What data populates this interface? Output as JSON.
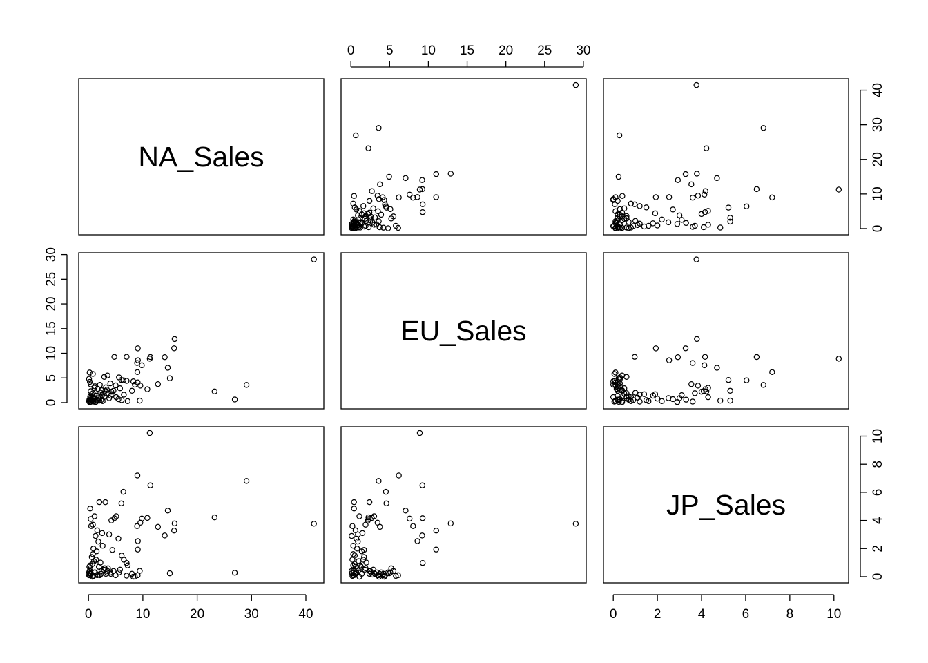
{
  "chart_data": {
    "type": "scatter",
    "title": "",
    "variables": [
      {
        "name": "NA_Sales",
        "range": [
          0,
          41.5
        ]
      },
      {
        "name": "EU_Sales",
        "range": [
          0,
          29.1
        ]
      },
      {
        "name": "JP_Sales",
        "range": [
          0,
          10.22
        ]
      }
    ],
    "axis_ticks": {
      "NA_Sales": [
        "0",
        "10",
        "20",
        "30",
        "40"
      ],
      "EU_Sales": [
        "0",
        "5",
        "10",
        "15",
        "20",
        "25",
        "30"
      ],
      "JP_Sales": [
        "0",
        "2",
        "4",
        "6",
        "8",
        "10"
      ]
    },
    "grid": false,
    "legend": "none",
    "games": [
      [
        41.49,
        29.02,
        3.77
      ],
      [
        29.08,
        3.58,
        6.81
      ],
      [
        15.85,
        12.88,
        3.79
      ],
      [
        15.75,
        11.01,
        3.28
      ],
      [
        11.27,
        8.89,
        10.22
      ],
      [
        23.2,
        2.26,
        4.22
      ],
      [
        11.38,
        9.23,
        6.5
      ],
      [
        14.03,
        9.2,
        2.93
      ],
      [
        14.59,
        7.06,
        4.7
      ],
      [
        26.93,
        0.63,
        0.28
      ],
      [
        9.07,
        11.0,
        1.93
      ],
      [
        9.81,
        7.57,
        4.13
      ],
      [
        9.0,
        6.18,
        7.2
      ],
      [
        8.94,
        8.03,
        3.6
      ],
      [
        9.09,
        8.59,
        2.53
      ],
      [
        14.97,
        4.94,
        0.24
      ],
      [
        7.01,
        9.27,
        0.97
      ],
      [
        9.43,
        0.4,
        0.41
      ],
      [
        12.78,
        3.75,
        3.54
      ],
      [
        4.75,
        9.26,
        4.16
      ],
      [
        6.42,
        4.52,
        6.04
      ],
      [
        10.83,
        2.71,
        4.18
      ],
      [
        9.54,
        3.44,
        3.84
      ],
      [
        6.05,
        4.59,
        5.22
      ],
      [
        8.25,
        4.3,
        0.0
      ],
      [
        8.52,
        3.63,
        0.0
      ],
      [
        9.05,
        4.1,
        0.1
      ],
      [
        7.01,
        4.4,
        0.07
      ],
      [
        5.6,
        5.1,
        0.3
      ],
      [
        8.0,
        2.4,
        0.2
      ],
      [
        5.8,
        2.9,
        0.5
      ],
      [
        6.5,
        1.6,
        1.2
      ],
      [
        3.5,
        5.5,
        0.4
      ],
      [
        2.9,
        5.2,
        0.6
      ],
      [
        0.2,
        6.1,
        0.1
      ],
      [
        0.8,
        5.8,
        0.05
      ],
      [
        4.0,
        3.9,
        0.3
      ],
      [
        3.2,
        3.1,
        0.2
      ],
      [
        5.0,
        3.5,
        0.1
      ],
      [
        4.6,
        2.4,
        0.4
      ],
      [
        2.0,
        0.4,
        5.3
      ],
      [
        3.1,
        2.4,
        5.3
      ],
      [
        1.1,
        3.0,
        4.3
      ],
      [
        0.3,
        0.4,
        4.85
      ],
      [
        0.4,
        2.3,
        4.1
      ],
      [
        5.1,
        1.1,
        4.3
      ],
      [
        4.2,
        2.2,
        4.0
      ],
      [
        0.8,
        1.9,
        3.7
      ],
      [
        1.6,
        0.6,
        3.3
      ],
      [
        2.5,
        1.5,
        3.1
      ],
      [
        3.8,
        0.9,
        3.0
      ],
      [
        6.1,
        0.5,
        1.5
      ],
      [
        7.2,
        0.3,
        0.8
      ],
      [
        0.5,
        0.2,
        3.6
      ],
      [
        1.3,
        0.1,
        2.9
      ],
      [
        2.6,
        0.3,
        2.2
      ],
      [
        1.8,
        0.9,
        2.5
      ],
      [
        4.4,
        1.7,
        1.9
      ],
      [
        5.5,
        0.7,
        2.7
      ],
      [
        3.0,
        1.2,
        0.6
      ],
      [
        2.2,
        2.0,
        1.0
      ],
      [
        1.5,
        1.4,
        1.8
      ],
      [
        0.9,
        0.8,
        2.0
      ],
      [
        0.6,
        1.7,
        1.4
      ],
      [
        1.0,
        1.0,
        1.1
      ],
      [
        0.7,
        0.5,
        0.9
      ],
      [
        1.9,
        1.3,
        0.7
      ],
      [
        2.8,
        1.8,
        0.5
      ],
      [
        3.4,
        2.6,
        0.3
      ],
      [
        4.1,
        1.4,
        0.2
      ],
      [
        1.2,
        3.3,
        0.3
      ],
      [
        0.4,
        3.7,
        0.2
      ],
      [
        2.1,
        3.6,
        0.1
      ],
      [
        0.1,
        4.8,
        0.3
      ],
      [
        0.25,
        4.2,
        0.2
      ],
      [
        1.7,
        2.8,
        0.15
      ],
      [
        2.4,
        2.5,
        0.4
      ],
      [
        3.6,
        1.9,
        0.6
      ],
      [
        0.3,
        1.2,
        0.8
      ],
      [
        0.8,
        0.3,
        1.6
      ],
      [
        1.4,
        0.2,
        1.2
      ],
      [
        0.2,
        0.1,
        0.4
      ],
      [
        0.5,
        0.6,
        0.2
      ],
      [
        0.1,
        0.3,
        0.1
      ],
      [
        0.9,
        0.2,
        0.05
      ],
      [
        1.1,
        0.7,
        0.3
      ],
      [
        0.3,
        0.9,
        0.6
      ],
      [
        1.6,
        0.4,
        0.1
      ],
      [
        2.3,
        0.5,
        0.2
      ],
      [
        0.7,
        1.1,
        0.0
      ],
      [
        0.4,
        0.15,
        0.25
      ],
      [
        0.15,
        0.6,
        0.7
      ]
    ]
  }
}
